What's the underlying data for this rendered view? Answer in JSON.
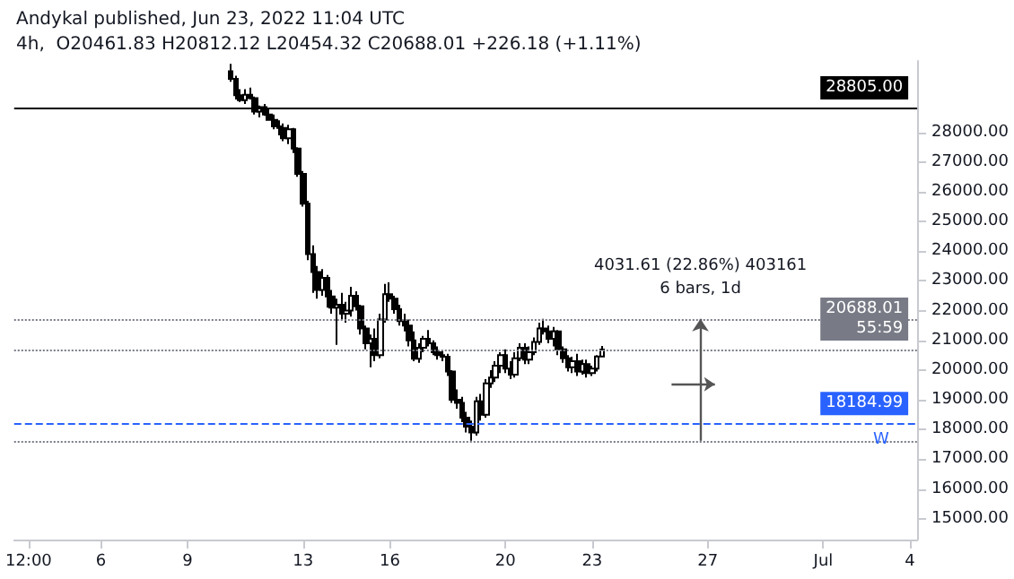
{
  "chart_data": {
    "type": "candlestick",
    "title": "Andykal published, Jun 23, 2022 11:04 UTC",
    "subtitle": "4h,  O20461.83 H20812.12 L20454.32 C20688.01 +226.18 (+1.11%)",
    "x": [
      "2022-06-10T12:00",
      "2022-06-10T16:00",
      "2022-06-10T20:00",
      "2022-06-11T00:00",
      "2022-06-11T04:00",
      "2022-06-11T08:00",
      "2022-06-11T12:00",
      "2022-06-11T16:00",
      "2022-06-11T20:00",
      "2022-06-12T00:00",
      "2022-06-12T04:00",
      "2022-06-12T08:00",
      "2022-06-12T12:00",
      "2022-06-12T16:00",
      "2022-06-12T20:00",
      "2022-06-13T00:00",
      "2022-06-13T04:00",
      "2022-06-13T08:00",
      "2022-06-13T12:00",
      "2022-06-13T16:00",
      "2022-06-13T20:00",
      "2022-06-14T00:00",
      "2022-06-14T04:00",
      "2022-06-14T08:00",
      "2022-06-14T12:00",
      "2022-06-14T16:00",
      "2022-06-14T20:00",
      "2022-06-15T00:00",
      "2022-06-15T04:00",
      "2022-06-15T08:00",
      "2022-06-15T12:00",
      "2022-06-15T16:00",
      "2022-06-15T20:00",
      "2022-06-16T00:00",
      "2022-06-16T04:00",
      "2022-06-16T08:00",
      "2022-06-16T12:00",
      "2022-06-16T16:00",
      "2022-06-16T20:00",
      "2022-06-17T00:00",
      "2022-06-17T04:00",
      "2022-06-17T08:00",
      "2022-06-17T12:00",
      "2022-06-17T16:00",
      "2022-06-17T20:00",
      "2022-06-18T00:00",
      "2022-06-18T04:00",
      "2022-06-18T08:00",
      "2022-06-18T12:00",
      "2022-06-18T16:00",
      "2022-06-18T20:00",
      "2022-06-19T00:00",
      "2022-06-19T04:00",
      "2022-06-19T08:00",
      "2022-06-19T12:00",
      "2022-06-19T16:00",
      "2022-06-19T20:00",
      "2022-06-20T00:00",
      "2022-06-20T04:00",
      "2022-06-20T08:00",
      "2022-06-20T12:00",
      "2022-06-20T16:00",
      "2022-06-20T20:00",
      "2022-06-21T00:00",
      "2022-06-21T04:00",
      "2022-06-21T08:00",
      "2022-06-21T12:00",
      "2022-06-21T16:00",
      "2022-06-21T20:00",
      "2022-06-22T00:00",
      "2022-06-22T04:00",
      "2022-06-22T08:00",
      "2022-06-22T12:00",
      "2022-06-22T16:00",
      "2022-06-22T20:00",
      "2022-06-23T00:00",
      "2022-06-23T04:00",
      "2022-06-23T08:00"
    ],
    "ohlc": [
      [
        30050,
        30300,
        29700,
        29800
      ],
      [
        29800,
        29900,
        29100,
        29250
      ],
      [
        29250,
        29450,
        29020,
        29084
      ],
      [
        29084,
        29450,
        28950,
        29260
      ],
      [
        29260,
        29500,
        29100,
        29150
      ],
      [
        29150,
        29200,
        28600,
        28700
      ],
      [
        28700,
        28900,
        28500,
        28850
      ],
      [
        28850,
        28950,
        28550,
        28600
      ],
      [
        28600,
        28800,
        28400,
        28420
      ],
      [
        28420,
        28600,
        28100,
        28200
      ],
      [
        28200,
        28400,
        27900,
        28150
      ],
      [
        28150,
        28300,
        27700,
        27800
      ],
      [
        27800,
        28250,
        27600,
        28100
      ],
      [
        28100,
        28150,
        27300,
        27450
      ],
      [
        27450,
        27500,
        26500,
        26600
      ],
      [
        26600,
        26700,
        25500,
        25600
      ],
      [
        25600,
        25700,
        23700,
        23900
      ],
      [
        23900,
        24200,
        22600,
        23300
      ],
      [
        23300,
        23500,
        22400,
        22700
      ],
      [
        22700,
        23400,
        22500,
        23100
      ],
      [
        23100,
        23200,
        22100,
        22480
      ],
      [
        22480,
        22700,
        21900,
        22100
      ],
      [
        22100,
        22400,
        20850,
        22200
      ],
      [
        22200,
        22600,
        21700,
        21900
      ],
      [
        21900,
        22300,
        21600,
        22000
      ],
      [
        22000,
        22800,
        21800,
        22500
      ],
      [
        22500,
        22650,
        22000,
        22150
      ],
      [
        22150,
        22200,
        21200,
        21400
      ],
      [
        21400,
        21500,
        20700,
        20900
      ],
      [
        20900,
        21200,
        20100,
        21050
      ],
      [
        21050,
        21400,
        20300,
        20500
      ],
      [
        20500,
        21900,
        20400,
        21700
      ],
      [
        21700,
        22900,
        21600,
        22550
      ],
      [
        22550,
        22950,
        22300,
        22400
      ],
      [
        22400,
        22500,
        21900,
        22050
      ],
      [
        22050,
        22200,
        21500,
        21650
      ],
      [
        21650,
        21900,
        21300,
        21500
      ],
      [
        21500,
        21700,
        20800,
        21000
      ],
      [
        21000,
        21300,
        20300,
        20380
      ],
      [
        20380,
        20900,
        20250,
        20750
      ],
      [
        20750,
        21150,
        20600,
        21050
      ],
      [
        21050,
        21350,
        20800,
        20900
      ],
      [
        20900,
        21000,
        20500,
        20600
      ],
      [
        20600,
        20800,
        20350,
        20500
      ],
      [
        20500,
        20650,
        20300,
        20450
      ],
      [
        20450,
        20550,
        19800,
        19950
      ],
      [
        19950,
        20000,
        18900,
        19000
      ],
      [
        19000,
        19350,
        18700,
        18900
      ],
      [
        18900,
        19100,
        18250,
        18400
      ],
      [
        18400,
        18600,
        17900,
        18100
      ],
      [
        18100,
        18300,
        17622,
        17900
      ],
      [
        17900,
        19100,
        17800,
        18950
      ],
      [
        18950,
        19200,
        18300,
        18500
      ],
      [
        18500,
        19700,
        18400,
        19550
      ],
      [
        19550,
        20000,
        19400,
        19750
      ],
      [
        19750,
        20300,
        19600,
        20150
      ],
      [
        20150,
        20600,
        19900,
        20500
      ],
      [
        20500,
        20700,
        19900,
        20050
      ],
      [
        20050,
        20300,
        19700,
        19850
      ],
      [
        19850,
        20600,
        19750,
        20400
      ],
      [
        20400,
        20900,
        20300,
        20750
      ],
      [
        20750,
        20900,
        20200,
        20350
      ],
      [
        20350,
        20800,
        20200,
        20600
      ],
      [
        20600,
        21100,
        20500,
        20950
      ],
      [
        20950,
        21600,
        20850,
        21400
      ],
      [
        21400,
        21723,
        21200,
        21300
      ],
      [
        21300,
        21500,
        20900,
        21050
      ],
      [
        21050,
        21450,
        20800,
        21300
      ],
      [
        21300,
        21350,
        20500,
        20700
      ],
      [
        20700,
        20800,
        20250,
        20400
      ],
      [
        20400,
        20500,
        19950,
        20100
      ],
      [
        20100,
        20450,
        19900,
        20300
      ],
      [
        20300,
        20550,
        19800,
        19950
      ],
      [
        19950,
        20350,
        19850,
        20200
      ],
      [
        20200,
        20350,
        19750,
        19900
      ],
      [
        19900,
        20150,
        19800,
        20050
      ],
      [
        20050,
        20500,
        19950,
        20461.83
      ],
      [
        20461.83,
        20812.12,
        20454.32,
        20688.01
      ]
    ],
    "color": "#000000",
    "xlim": [
      "2022-06-03T00:00",
      "2022-07-04T06:00"
    ],
    "xticks": [
      {
        "value": "2022-06-03T12:00",
        "label": "12:00"
      },
      {
        "value": "2022-06-06T00:00",
        "label": "6"
      },
      {
        "value": "2022-06-09T00:00",
        "label": "9"
      },
      {
        "value": "2022-06-13T00:00",
        "label": "13"
      },
      {
        "value": "2022-06-16T00:00",
        "label": "16"
      },
      {
        "value": "2022-06-20T00:00",
        "label": "20"
      },
      {
        "value": "2022-06-23T00:00",
        "label": "23"
      },
      {
        "value": "2022-06-27T00:00",
        "label": "27"
      },
      {
        "value": "2022-07-01T00:00",
        "label": "Jul"
      },
      {
        "value": "2022-07-04T00:00",
        "label": "4"
      }
    ],
    "ylim": [
      14300,
      30400
    ],
    "yticks": [
      {
        "value": 15000,
        "label": "15000.00"
      },
      {
        "value": 16000,
        "label": "16000.00"
      },
      {
        "value": 17000,
        "label": "17000.00"
      },
      {
        "value": 18000,
        "label": "18000.00"
      },
      {
        "value": 19000,
        "label": "19000.00"
      },
      {
        "value": 20000,
        "label": "20000.00"
      },
      {
        "value": 21000,
        "label": "21000.00"
      },
      {
        "value": 22000,
        "label": "22000.00"
      },
      {
        "value": 23000,
        "label": "23000.00"
      },
      {
        "value": 24000,
        "label": "24000.00"
      },
      {
        "value": 25000,
        "label": "25000.00"
      },
      {
        "value": 26000,
        "label": "26000.00"
      },
      {
        "value": 27000,
        "label": "27000.00"
      },
      {
        "value": 28000,
        "label": "28000.00"
      }
    ],
    "ref_lines": [
      {
        "axis": "y",
        "value": 28805,
        "label": "28805.00",
        "color": "#000000",
        "line_style": "solid"
      },
      {
        "axis": "y",
        "value": 20688.01,
        "label": "20688.01\n55:59",
        "color": "#787b86",
        "line_style": "dotted"
      },
      {
        "axis": "y",
        "value": 18184.99,
        "label": "18184.99",
        "color": "#2962ff",
        "line_style": "dashed"
      },
      {
        "axis": "y",
        "value": 21723,
        "color": "#787b86",
        "line_style": "dotted"
      },
      {
        "axis": "y",
        "value": 17622,
        "color": "#787b86",
        "line_style": "dotted"
      }
    ],
    "annotations": [
      "4031.61 (22.86%) 403161",
      "6 bars, 1d",
      {
        "text": "W",
        "x": "2022-07-03T00:00",
        "y": 18184.99
      }
    ],
    "grid": false
  }
}
